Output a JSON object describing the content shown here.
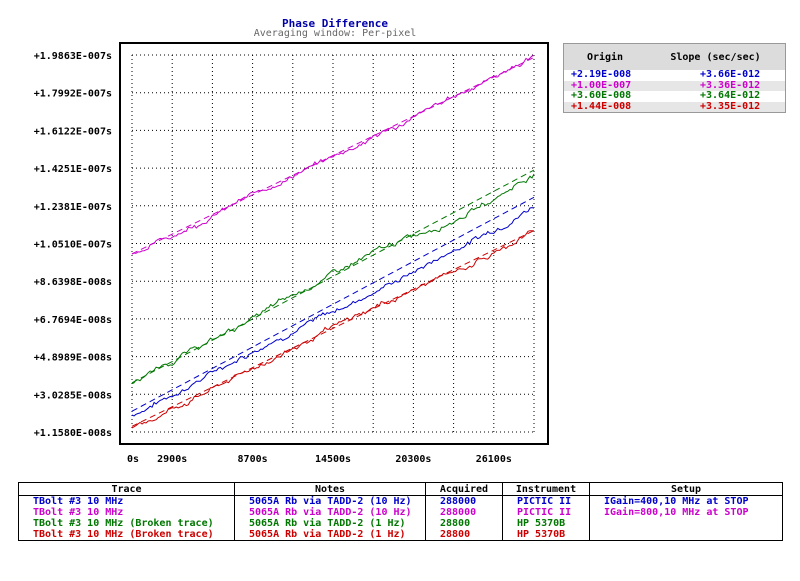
{
  "chart_data": {
    "type": "line",
    "title": "Phase Difference",
    "subtitle": "Averaging window: Per-pixel",
    "xlabel": "",
    "ylabel": "",
    "xlim": [
      0,
      29000
    ],
    "ylim": [
      1.158e-08,
      1.9863e-07
    ],
    "x_tick_values": [
      0,
      2900,
      8700,
      14500,
      20300,
      26100
    ],
    "x_tick_labels": [
      "0s",
      "2900s",
      "8700s",
      "14500s",
      "20300s",
      "26100s"
    ],
    "y_tick_values": [
      1.9863e-07,
      1.7992e-07,
      1.6122e-07,
      1.4251e-07,
      1.2381e-07,
      1.051e-07,
      8.6398e-08,
      6.7694e-08,
      4.8989e-08,
      3.0285e-08,
      1.158e-08
    ],
    "y_tick_labels": [
      "+1.9863E-007s",
      "+1.7992E-007s",
      "+1.6122E-007s",
      "+1.4251E-007s",
      "+1.2381E-007s",
      "+1.0510E-007s",
      "+8.6398E-008s",
      "+6.7694E-008s",
      "+4.8989E-008s",
      "+3.0285E-008s",
      "+1.1580E-008s"
    ],
    "grid": true,
    "series": [
      {
        "color": "#0000cc",
        "x": [
          0,
          2900,
          5800,
          8700,
          11600,
          14500,
          17400,
          20300,
          23200,
          26100,
          29000
        ],
        "values": [
          2e-08,
          3e-08,
          4.1e-08,
          5.2e-08,
          6.2e-08,
          7.1e-08,
          8.1e-08,
          9.1e-08,
          1.02e-07,
          1.12e-07,
          1.24e-07
        ],
        "fit": {
          "origin": 2.19e-08,
          "slope": 3.66e-12
        }
      },
      {
        "color": "#cc00cc",
        "x": [
          0,
          2900,
          5800,
          8700,
          11600,
          14500,
          17400,
          20300,
          23200,
          26100,
          29000
        ],
        "values": [
          1e-07,
          1.09e-07,
          1.19e-07,
          1.29e-07,
          1.39e-07,
          1.48e-07,
          1.58e-07,
          1.67e-07,
          1.78e-07,
          1.88e-07,
          1.98e-07
        ],
        "fit": {
          "origin": 1e-07,
          "slope": 3.36e-12
        }
      },
      {
        "color": "#007700",
        "x": [
          0,
          2900,
          5800,
          8700,
          11600,
          14500,
          17400,
          20300,
          23200,
          26100,
          29000
        ],
        "values": [
          3.6e-08,
          4.7e-08,
          5.7e-08,
          6.8e-08,
          7.9e-08,
          9e-08,
          1e-07,
          1.09e-07,
          1.17e-07,
          1.27e-07,
          1.4e-07
        ],
        "fit": {
          "origin": 3.6e-08,
          "slope": 3.64e-12
        }
      },
      {
        "color": "#cc0000",
        "x": [
          0,
          2900,
          5800,
          8700,
          11600,
          14500,
          17400,
          20300,
          23200,
          26100,
          29000
        ],
        "values": [
          1.3e-08,
          2.3e-08,
          3.3e-08,
          4.3e-08,
          5.3e-08,
          6.3e-08,
          7.3e-08,
          8.2e-08,
          9.1e-08,
          1e-07,
          1.12e-07
        ],
        "fit": {
          "origin": 1.44e-08,
          "slope": 3.35e-12
        }
      }
    ]
  },
  "fit_table": {
    "header_origin": "Origin",
    "header_slope": "Slope (sec/sec)",
    "rows": [
      {
        "origin": "+2.19E-008",
        "slope": "+3.66E-012",
        "color": "#0000cc"
      },
      {
        "origin": "+1.00E-007",
        "slope": "+3.36E-012",
        "color": "#cc00cc"
      },
      {
        "origin": "+3.60E-008",
        "slope": "+3.64E-012",
        "color": "#007700"
      },
      {
        "origin": "+1.44E-008",
        "slope": "+3.35E-012",
        "color": "#cc0000"
      }
    ]
  },
  "legend": {
    "headers": [
      "Trace",
      "Notes",
      "Acquired",
      "Instrument",
      "Setup"
    ],
    "rows": [
      {
        "trace": "TBolt #3 10 MHz",
        "notes": "5065A Rb via TADD-2 (10 Hz)",
        "acquired": "288000",
        "instrument": "PICTIC II",
        "setup": "IGain=400,10 MHz at STOP",
        "color": "#0000cc"
      },
      {
        "trace": "TBolt #3 10 MHz",
        "notes": "5065A Rb via TADD-2 (10 Hz)",
        "acquired": "288000",
        "instrument": "PICTIC II",
        "setup": "IGain=800,10 MHz at STOP",
        "color": "#cc00cc"
      },
      {
        "trace": "TBolt #3 10 MHz (Broken trace)",
        "notes": "5065A Rb via TADD-2 (1 Hz)",
        "acquired": "28800",
        "instrument": "HP 5370B",
        "setup": "",
        "color": "#007700"
      },
      {
        "trace": "TBolt #3 10 MHz (Broken trace)",
        "notes": "5065A Rb via TADD-2 (1 Hz)",
        "acquired": "28800",
        "instrument": "HP 5370B",
        "setup": "",
        "color": "#cc0000"
      }
    ]
  }
}
